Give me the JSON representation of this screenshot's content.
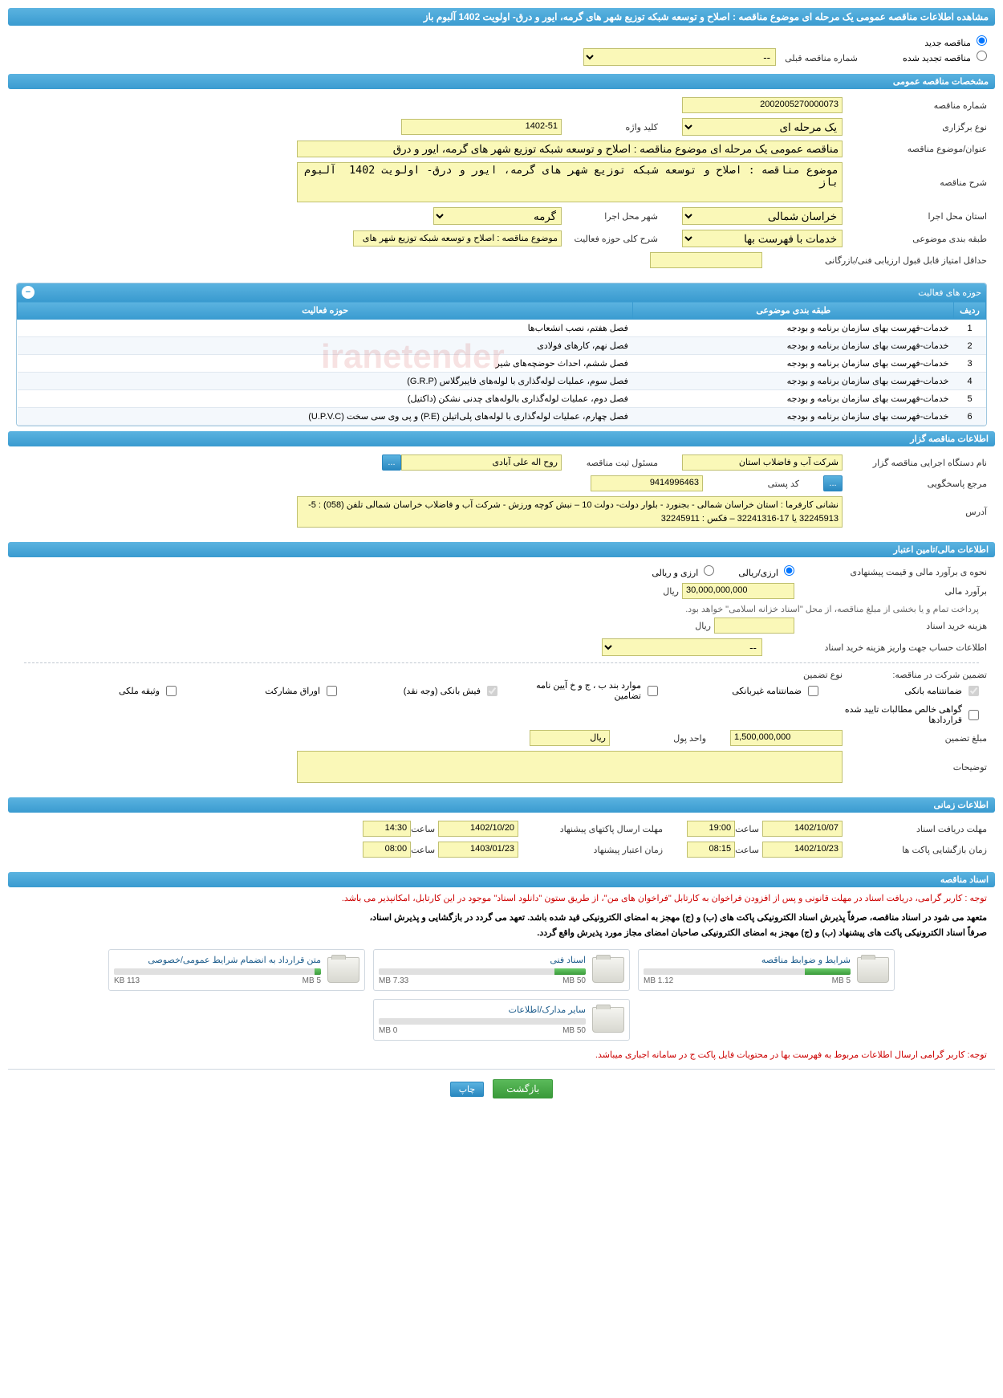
{
  "page_title": "مشاهده اطلاعات مناقصه عمومی یک مرحله ای موضوع مناقصه : اصلاح و توسعه شبکه توزیع شهر های گرمه، ایور و درق- اولویت 1402 آلبوم باز",
  "radios": {
    "new_tender": "مناقصه جدید",
    "renewed_tender": "مناقصه تجدید شده",
    "prev_number_label": "شماره مناقصه قبلی",
    "prev_number_value": "--"
  },
  "sections": {
    "general": "مشخصات مناقصه عمومی",
    "activities": "حوزه های فعالیت",
    "holder": "اطلاعات مناقصه گزار",
    "finance": "اطلاعات مالی/تامین اعتبار",
    "timing": "اطلاعات زمانی",
    "docs": "اسناد مناقصه"
  },
  "general": {
    "number_label": "شماره مناقصه",
    "number_value": "2002005270000073",
    "type_label": "نوع برگزاری",
    "type_value": "یک مرحله ای",
    "keyword_label": "کلید واژه",
    "keyword_value": "1402-51",
    "title_label": "عنوان/موضوع مناقصه",
    "title_value": "مناقصه عمومی یک مرحله ای موضوع مناقصه : اصلاح و توسعه شبکه توزیع شهر های گرمه، ایور و درق",
    "desc_label": "شرح مناقصه",
    "desc_value": "موضوع مناقصه : اصلاح و توسعه شبکه توزیع شهر های گرمه، ایور و درق- اولویت 1402  آلبوم باز",
    "province_label": "استان محل اجرا",
    "province_value": "خراسان شمالی",
    "city_label": "شهر محل اجرا",
    "city_value": "گرمه",
    "category_label": "طبقه بندی موضوعی",
    "category_value": "خدمات با فهرست بها",
    "activity_scope_label": "شرح کلی حوزه فعالیت",
    "activity_scope_value": "موضوع مناقصه : اصلاح و توسعه شبکه توزیع شهر های",
    "min_score_label": "حداقل امتیاز قابل قبول ارزیابی فنی/بازرگانی",
    "min_score_value": ""
  },
  "activities_table": {
    "col_row": "ردیف",
    "col_category": "طبقه بندی موضوعی",
    "col_activity": "حوزه فعالیت",
    "rows": [
      {
        "n": "1",
        "cat": "خدمات-فهرست بهای سازمان برنامه و بودجه",
        "act": "فصل هفتم، نصب انشعاب‌ها"
      },
      {
        "n": "2",
        "cat": "خدمات-فهرست بهای سازمان برنامه و بودجه",
        "act": "فصل نهم، کارهای فولادی"
      },
      {
        "n": "3",
        "cat": "خدمات-فهرست بهای سازمان برنامه و بودجه",
        "act": "فصل ششم، احداث حوضچه‌های شیر"
      },
      {
        "n": "4",
        "cat": "خدمات-فهرست بهای سازمان برنامه و بودجه",
        "act": "فصل سوم، عملیات لوله‌گذاری با لوله‌های فایبرگلاس (G.R.P)"
      },
      {
        "n": "5",
        "cat": "خدمات-فهرست بهای سازمان برنامه و بودجه",
        "act": "فصل دوم، عملیات لوله‌گذاری بالوله‌های چدنی نشکن (داکتیل)"
      },
      {
        "n": "6",
        "cat": "خدمات-فهرست بهای سازمان برنامه و بودجه",
        "act": "فصل چهارم، عملیات لوله‌گذاری با لوله‌های پلی‌اتیلن (P.E) و پی وی سی سخت (U.P.V.C)"
      }
    ]
  },
  "holder": {
    "org_label": "نام دستگاه اجرایی مناقصه گزار",
    "org_value": "شرکت آب و فاضلاب استان",
    "responsible_label": "مسئول ثبت مناقصه",
    "responsible_value": "روح اله  علی آبادی",
    "response_ref_label": "مرجع پاسخگویی",
    "postal_label": "کد پستی",
    "postal_value": "9414996463",
    "address_label": "آدرس",
    "address_value": "نشانی کارفرما : استان خراسان شمالی - بجنورد - بلوار دولت- دولت 10 – نبش کوچه ورزش - شرکت آب و فاضلاب خراسان شمالی تلفن (058) : 5-32245913  یا  17-32241316 – فکس : 32245911"
  },
  "finance": {
    "method_label": "نحوه ی برآورد مالی و قیمت پیشنهادی",
    "opt_arzy_riali": "ارزی/ریالی",
    "opt_arzy_va_riali": "ارزی و ریالی",
    "estimate_label": "برآورد مالی",
    "estimate_value": "30,000,000,000",
    "rial": "ریال",
    "treasury_note": "پرداخت تمام و یا بخشی از مبلغ مناقصه، از محل \"اسناد خزانه اسلامی\" خواهد بود.",
    "doc_cost_label": "هزینه خرید اسناد",
    "doc_cost_value": "",
    "deposit_account_label": "اطلاعات حساب جهت واریز هزینه خرید اسناد",
    "deposit_account_value": "--",
    "guarantee_label": "تضمین شرکت در مناقصه:",
    "guarantee_type_label": "نوع تضمین",
    "chk_bank_guarantee": "ضمانتنامه بانکی",
    "chk_nonbank_guarantee": "ضمانتنامه غیربانکی",
    "chk_items_regulation": "موارد بند ب ، ج و خ آیین نامه تضامین",
    "chk_bank_receipt": "فیش بانکی (وجه نقد)",
    "chk_securities": "اوراق مشارکت",
    "chk_property_deed": "وثیقه ملکی",
    "chk_claims_cert": "گواهی خالص مطالبات تایید شده قراردادها",
    "guarantee_amount_label": "مبلغ تضمین",
    "guarantee_amount_value": "1,500,000,000",
    "unit_label": "واحد پول",
    "unit_value": "ریال",
    "notes_label": "توضیحات",
    "notes_value": ""
  },
  "timing": {
    "doc_deadline_label": "مهلت دریافت اسناد",
    "doc_deadline_date": "1402/10/07",
    "doc_deadline_time": "19:00",
    "bid_deadline_label": "مهلت ارسال پاکتهای پیشنهاد",
    "bid_deadline_date": "1402/10/20",
    "bid_deadline_time": "14:30",
    "open_label": "زمان بازگشایی پاکت ها",
    "open_date": "1402/10/23",
    "open_time": "08:15",
    "validity_label": "زمان اعتبار پیشنهاد",
    "validity_date": "1403/01/23",
    "validity_time": "08:00",
    "time_label": "ساعت"
  },
  "docs": {
    "warn1": "توجه : کاربر گرامی، دریافت اسناد در مهلت قانونی و پس از افزودن فراخوان به کارتابل \"فراخوان های من\"، از طریق ستون \"دانلود اسناد\" موجود در این کارتابل، امکانپذیر می باشد.",
    "warn2_a": "متعهد می شود در اسناد مناقصه، صرفاً پذیرش اسناد الکترونیکی پاکت های (ب) و (ج) مهجز به امضای الکترونیکی قید شده باشد. تعهد می گردد در بازگشایی و پذیرش اسناد،",
    "warn2_b": "صرفاً اسناد الکترونیکی پاکت های پیشنهاد (ب) و (ج) مهجز به امضای الکترونیکی صاحبان امضای مجاز مورد پذیرش واقع گردد.",
    "warn3": "توجه: کاربر گرامی ارسال اطلاعات مربوط به فهرست بها در محتویات فایل پاکت ج در سامانه اجباری میباشد.",
    "files": [
      {
        "title": "شرایط و ضوابط مناقصه",
        "used": "1.12 MB",
        "total": "5 MB",
        "pct": 22
      },
      {
        "title": "اسناد فنی",
        "used": "7.33 MB",
        "total": "50 MB",
        "pct": 15
      },
      {
        "title": "متن قرارداد به انضمام شرایط عمومی/خصوصی",
        "used": "113 KB",
        "total": "5 MB",
        "pct": 3
      },
      {
        "title": "سایر مدارک/اطلاعات",
        "used": "0 MB",
        "total": "50 MB",
        "pct": 0
      }
    ]
  },
  "buttons": {
    "back": "بازگشت",
    "print": "چاپ",
    "dots": "..."
  }
}
